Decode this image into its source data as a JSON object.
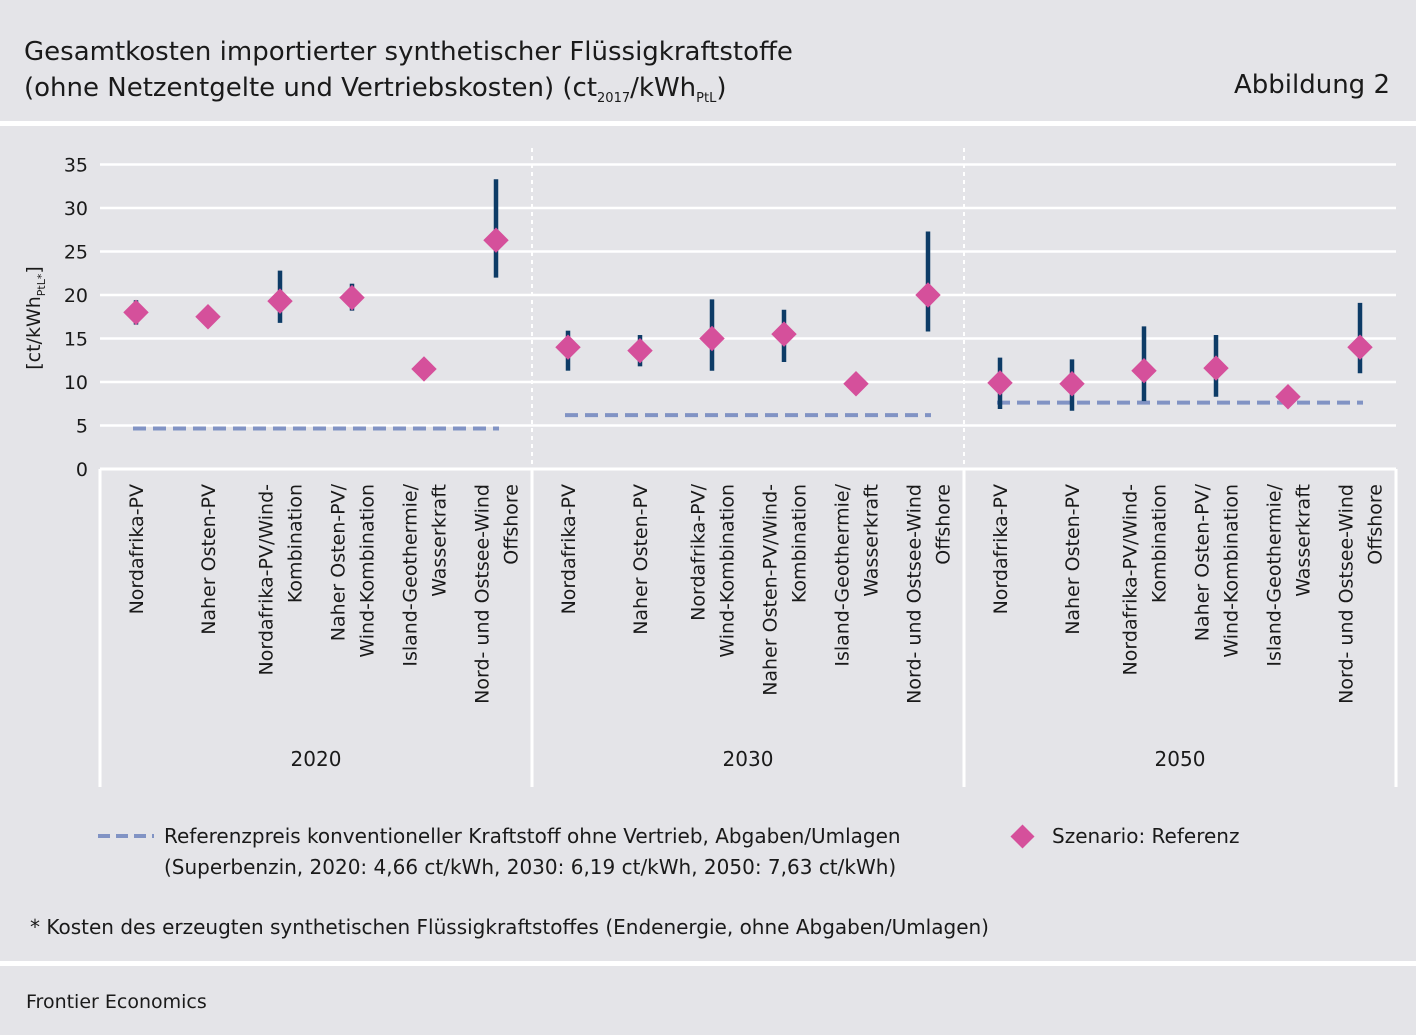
{
  "header": {
    "title_line1": "Gesamtkosten importierter synthetischer Flüssigkraftstoffe",
    "title_line2_pre": "(ohne Netzentgelte und Vertriebskosten) (ct",
    "title_sub1": "2017",
    "title_mid": "/kWh",
    "title_sub2": "PtL",
    "title_end": ")",
    "figure_label": "Abbildung 2"
  },
  "legend": {
    "reference_line1": "Referenzpreis konventioneller Kraftstoff ohne Vertrieb, Abgaben/Umlagen",
    "reference_line2": "(Superbenzin, 2020: 4,66 ct/kWh,  2030: 6,19 ct/kWh, 2050: 7,63 ct/kWh)",
    "scenario": "Szenario: Referenz"
  },
  "footnote": "* Kosten des erzeugten synthetischen Flüssigkraftstoffes (Endenergie, ohne Abgaben/Umlagen)",
  "source": "Frontier Economics",
  "colors": {
    "diamond": "#d5509b",
    "range": "#0d3b66",
    "reference": "#8193c4",
    "grid": "#ffffff"
  },
  "chart_data": {
    "type": "scatter",
    "ylabel_main": "[ct/kWh",
    "ylabel_sub": "PtL*",
    "ylabel_end": "]",
    "ylim": [
      0,
      35
    ],
    "yticks": [
      0,
      5,
      10,
      15,
      20,
      25,
      30,
      35
    ],
    "grid": true,
    "groups": [
      {
        "label": "2020",
        "reference": 4.66,
        "categories": [
          [
            "Nordafrika-PV"
          ],
          [
            "Naher Osten-PV"
          ],
          [
            "Nordafrika-PV/Wind-",
            "Kombination"
          ],
          [
            "Naher Osten-PV/",
            "Wind-Kombination"
          ],
          [
            "Island-Geothermie/",
            "Wasserkraft"
          ],
          [
            "Nord- und Ostsee-Wind",
            "Offshore"
          ]
        ],
        "values": [
          18.0,
          17.5,
          19.3,
          19.7,
          11.5,
          26.3
        ],
        "low": [
          16.6,
          null,
          16.8,
          18.2,
          null,
          22.0
        ],
        "high": [
          19.4,
          null,
          22.8,
          21.3,
          null,
          33.3
        ]
      },
      {
        "label": "2030",
        "reference": 6.19,
        "categories": [
          [
            "Nordafrika-PV"
          ],
          [
            "Naher Osten-PV"
          ],
          [
            "Nordafrika-PV/",
            "Wind-Kombination"
          ],
          [
            "Naher Osten-PV/Wind-",
            "Kombination"
          ],
          [
            "Island-Geothermie/",
            "Wasserkraft"
          ],
          [
            "Nord- und Ostsee-Wind",
            "Offshore"
          ]
        ],
        "values": [
          14.0,
          13.6,
          15.0,
          15.5,
          9.8,
          20.0
        ],
        "low": [
          11.3,
          11.8,
          11.3,
          12.3,
          null,
          15.8
        ],
        "high": [
          15.9,
          15.4,
          19.5,
          18.3,
          null,
          27.3
        ]
      },
      {
        "label": "2050",
        "reference": 7.63,
        "categories": [
          [
            "Nordafrika-PV"
          ],
          [
            "Naher Osten-PV"
          ],
          [
            "Nordafrika-PV/Wind-",
            "Kombination"
          ],
          [
            "Naher Osten-PV/",
            "Wind-Kombination"
          ],
          [
            "Island-Geothermie/",
            "Wasserkraft"
          ],
          [
            "Nord- und Ostsee-Wind",
            "Offshore"
          ]
        ],
        "values": [
          9.9,
          9.8,
          11.3,
          11.6,
          8.3,
          14.0
        ],
        "low": [
          6.9,
          6.7,
          7.8,
          8.3,
          null,
          11.0
        ],
        "high": [
          12.8,
          12.6,
          16.4,
          15.4,
          null,
          19.1
        ]
      }
    ]
  }
}
